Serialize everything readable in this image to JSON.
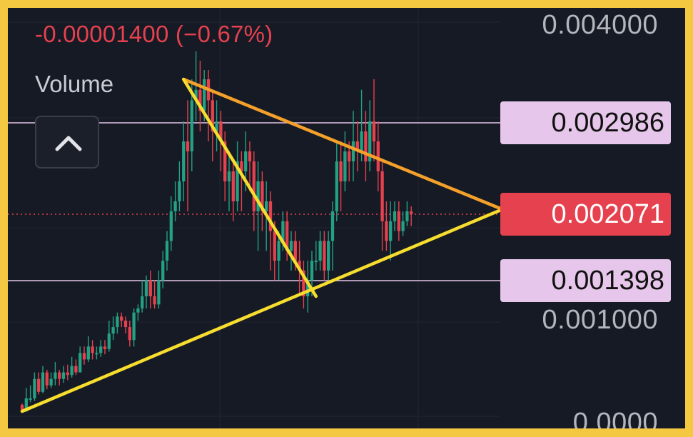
{
  "header": {
    "change_text": "-0.00001400 (−0.67%)",
    "volume_label": "Volume"
  },
  "controls": {
    "collapse_icon": "chevron-up-icon"
  },
  "colors": {
    "up": "#24a083",
    "down": "#e5414e",
    "frame": "#f5c842",
    "background": "#161a25",
    "level_line": "#e6c6ea",
    "current_price": "#e5414e",
    "trendline_yellow": "#f7dd2e",
    "trendline_orange": "#f5a02a"
  },
  "chart_data": {
    "type": "candlestick",
    "price_axis": {
      "range": [
        0,
        0.004
      ],
      "scale_note": "non-linear scale as displayed",
      "tick_labels": [
        "0.004000",
        "0.001000",
        "0.0000"
      ]
    },
    "levels": [
      {
        "name": "resistance",
        "value": 0.002986,
        "label": "0.002986"
      },
      {
        "name": "current",
        "value": 0.002071,
        "label": "0.002071"
      },
      {
        "name": "support",
        "value": 0.001398,
        "label": "0.001398"
      }
    ],
    "candles": [
      [
        0.00035,
        0.0003,
        0.00036,
        0.00025
      ],
      [
        0.0003,
        0.0004,
        0.00048,
        0.00028
      ],
      [
        0.0004,
        0.0004,
        0.0005,
        0.00037
      ],
      [
        0.0004,
        0.00055,
        0.0006,
        0.00038
      ],
      [
        0.00055,
        0.00045,
        0.0006,
        0.00043
      ],
      [
        0.00045,
        0.0006,
        0.00065,
        0.00044
      ],
      [
        0.0006,
        0.0005,
        0.00062,
        0.00047
      ],
      [
        0.0005,
        0.00055,
        0.0006,
        0.00048
      ],
      [
        0.00055,
        0.0006,
        0.00068,
        0.0005
      ],
      [
        0.0006,
        0.00055,
        0.00062,
        0.0005
      ],
      [
        0.00055,
        0.0006,
        0.00065,
        0.00052
      ],
      [
        0.0006,
        0.00058,
        0.00066,
        0.00054
      ],
      [
        0.00058,
        0.00065,
        0.00072,
        0.00056
      ],
      [
        0.00065,
        0.0006,
        0.0007,
        0.00058
      ],
      [
        0.0006,
        0.00075,
        0.0008,
        0.0006
      ],
      [
        0.00075,
        0.0007,
        0.0008,
        0.00066
      ],
      [
        0.0007,
        0.0008,
        0.00088,
        0.00068
      ],
      [
        0.0008,
        0.00075,
        0.00085,
        0.0007
      ],
      [
        0.00075,
        0.00075,
        0.0008,
        0.0007
      ],
      [
        0.00075,
        0.0008,
        0.00085,
        0.00072
      ],
      [
        0.0008,
        0.00078,
        0.00085,
        0.00074
      ],
      [
        0.00078,
        0.0009,
        0.001,
        0.00076
      ],
      [
        0.0009,
        0.00095,
        0.00105,
        0.00085
      ],
      [
        0.00095,
        0.00105,
        0.0011,
        0.0009
      ],
      [
        0.00105,
        0.001,
        0.0011,
        0.00095
      ],
      [
        0.001,
        0.00095,
        0.00105,
        0.0009
      ],
      [
        0.00095,
        0.00085,
        0.001,
        0.0008
      ],
      [
        0.00085,
        0.0011,
        0.00115,
        0.0008
      ],
      [
        0.0011,
        0.00115,
        0.0012,
        0.001
      ],
      [
        0.00115,
        0.0013,
        0.0014,
        0.0011
      ],
      [
        0.0013,
        0.0014,
        0.00145,
        0.00115
      ],
      [
        0.0014,
        0.0013,
        0.0015,
        0.00115
      ],
      [
        0.0013,
        0.0012,
        0.0014,
        0.00115
      ],
      [
        0.0012,
        0.0014,
        0.0015,
        0.00115
      ],
      [
        0.0014,
        0.0016,
        0.0017,
        0.00135
      ],
      [
        0.0016,
        0.0018,
        0.0019,
        0.0015
      ],
      [
        0.0018,
        0.0021,
        0.00225,
        0.0017
      ],
      [
        0.0021,
        0.0022,
        0.0024,
        0.002
      ],
      [
        0.0022,
        0.0024,
        0.0026,
        0.0021
      ],
      [
        0.0024,
        0.0028,
        0.003,
        0.0022
      ],
      [
        0.0028,
        0.0027,
        0.0032,
        0.0021
      ],
      [
        0.0027,
        0.0032,
        0.0034,
        0.0025
      ],
      [
        0.0032,
        0.0033,
        0.0037,
        0.003
      ],
      [
        0.0033,
        0.0031,
        0.0036,
        0.0029
      ],
      [
        0.0031,
        0.0034,
        0.0035,
        0.003
      ],
      [
        0.0034,
        0.0032,
        0.0035,
        0.0028
      ],
      [
        0.0032,
        0.0029,
        0.0033,
        0.0026
      ],
      [
        0.0029,
        0.003,
        0.0032,
        0.0027
      ],
      [
        0.003,
        0.0028,
        0.0031,
        0.0025
      ],
      [
        0.0028,
        0.0024,
        0.0029,
        0.0022
      ],
      [
        0.0024,
        0.0025,
        0.0027,
        0.0021
      ],
      [
        0.0025,
        0.0022,
        0.0026,
        0.002
      ],
      [
        0.0022,
        0.0026,
        0.0028,
        0.0021
      ],
      [
        0.0026,
        0.0025,
        0.0027,
        0.0021
      ],
      [
        0.0025,
        0.0027,
        0.0029,
        0.0023
      ],
      [
        0.0027,
        0.0026,
        0.0028,
        0.0023
      ],
      [
        0.0026,
        0.0021,
        0.0027,
        0.0019
      ],
      [
        0.0021,
        0.0024,
        0.0026,
        0.0017
      ],
      [
        0.0024,
        0.0021,
        0.0025,
        0.0019
      ],
      [
        0.0021,
        0.0022,
        0.0024,
        0.0017
      ],
      [
        0.0022,
        0.0019,
        0.0023,
        0.0015
      ],
      [
        0.0019,
        0.0016,
        0.002,
        0.0014
      ],
      [
        0.0016,
        0.0018,
        0.0019,
        0.0014
      ],
      [
        0.0018,
        0.002,
        0.0021,
        0.0017
      ],
      [
        0.002,
        0.0017,
        0.0021,
        0.0016
      ],
      [
        0.0017,
        0.0018,
        0.0019,
        0.0015
      ],
      [
        0.0018,
        0.0016,
        0.0019,
        0.0015
      ],
      [
        0.0016,
        0.0015,
        0.0018,
        0.0013
      ],
      [
        0.0015,
        0.0013,
        0.0016,
        0.00115
      ],
      [
        0.0013,
        0.0014,
        0.0016,
        0.0011
      ],
      [
        0.0014,
        0.0016,
        0.0017,
        0.0013
      ],
      [
        0.0016,
        0.0016,
        0.0018,
        0.0015
      ],
      [
        0.0016,
        0.0018,
        0.0019,
        0.0015
      ],
      [
        0.0018,
        0.0015,
        0.0019,
        0.0014
      ],
      [
        0.0015,
        0.0018,
        0.0019,
        0.0014
      ],
      [
        0.0018,
        0.0021,
        0.0022,
        0.0015
      ],
      [
        0.0021,
        0.0026,
        0.0028,
        0.002
      ],
      [
        0.0026,
        0.0024,
        0.0028,
        0.0021
      ],
      [
        0.0024,
        0.0027,
        0.0029,
        0.0023
      ],
      [
        0.0027,
        0.0026,
        0.0028,
        0.0024
      ],
      [
        0.0026,
        0.0028,
        0.0031,
        0.0024
      ],
      [
        0.0028,
        0.0027,
        0.003,
        0.0025
      ],
      [
        0.0027,
        0.0029,
        0.0033,
        0.0026
      ],
      [
        0.0029,
        0.0026,
        0.0031,
        0.0024
      ],
      [
        0.0026,
        0.003,
        0.0032,
        0.0025
      ],
      [
        0.003,
        0.0028,
        0.0034,
        0.0026
      ],
      [
        0.0028,
        0.0025,
        0.003,
        0.0023
      ],
      [
        0.0025,
        0.002,
        0.0026,
        0.0017
      ],
      [
        0.002,
        0.0018,
        0.0022,
        0.0017
      ],
      [
        0.0018,
        0.002,
        0.0022,
        0.0016
      ],
      [
        0.002,
        0.0021,
        0.0022,
        0.0019
      ],
      [
        0.0021,
        0.0019,
        0.0022,
        0.0018
      ],
      [
        0.0019,
        0.002,
        0.0021,
        0.00185
      ],
      [
        0.002,
        0.0021,
        0.0022,
        0.00195
      ],
      [
        0.0021,
        0.00207,
        0.00215,
        0.00195
      ]
    ],
    "trendlines": [
      {
        "name": "support-trend",
        "from": [
          0,
          0.0003
        ],
        "to": [
          116,
          0.00212
        ]
      },
      {
        "name": "upper-resistance-trend",
        "from": [
          39,
          0.0034
        ],
        "to": [
          116,
          0.00212
        ]
      },
      {
        "name": "steep-down-trend",
        "from": [
          39,
          0.0034
        ],
        "to": [
          71,
          0.0013
        ]
      }
    ],
    "grid": true
  }
}
